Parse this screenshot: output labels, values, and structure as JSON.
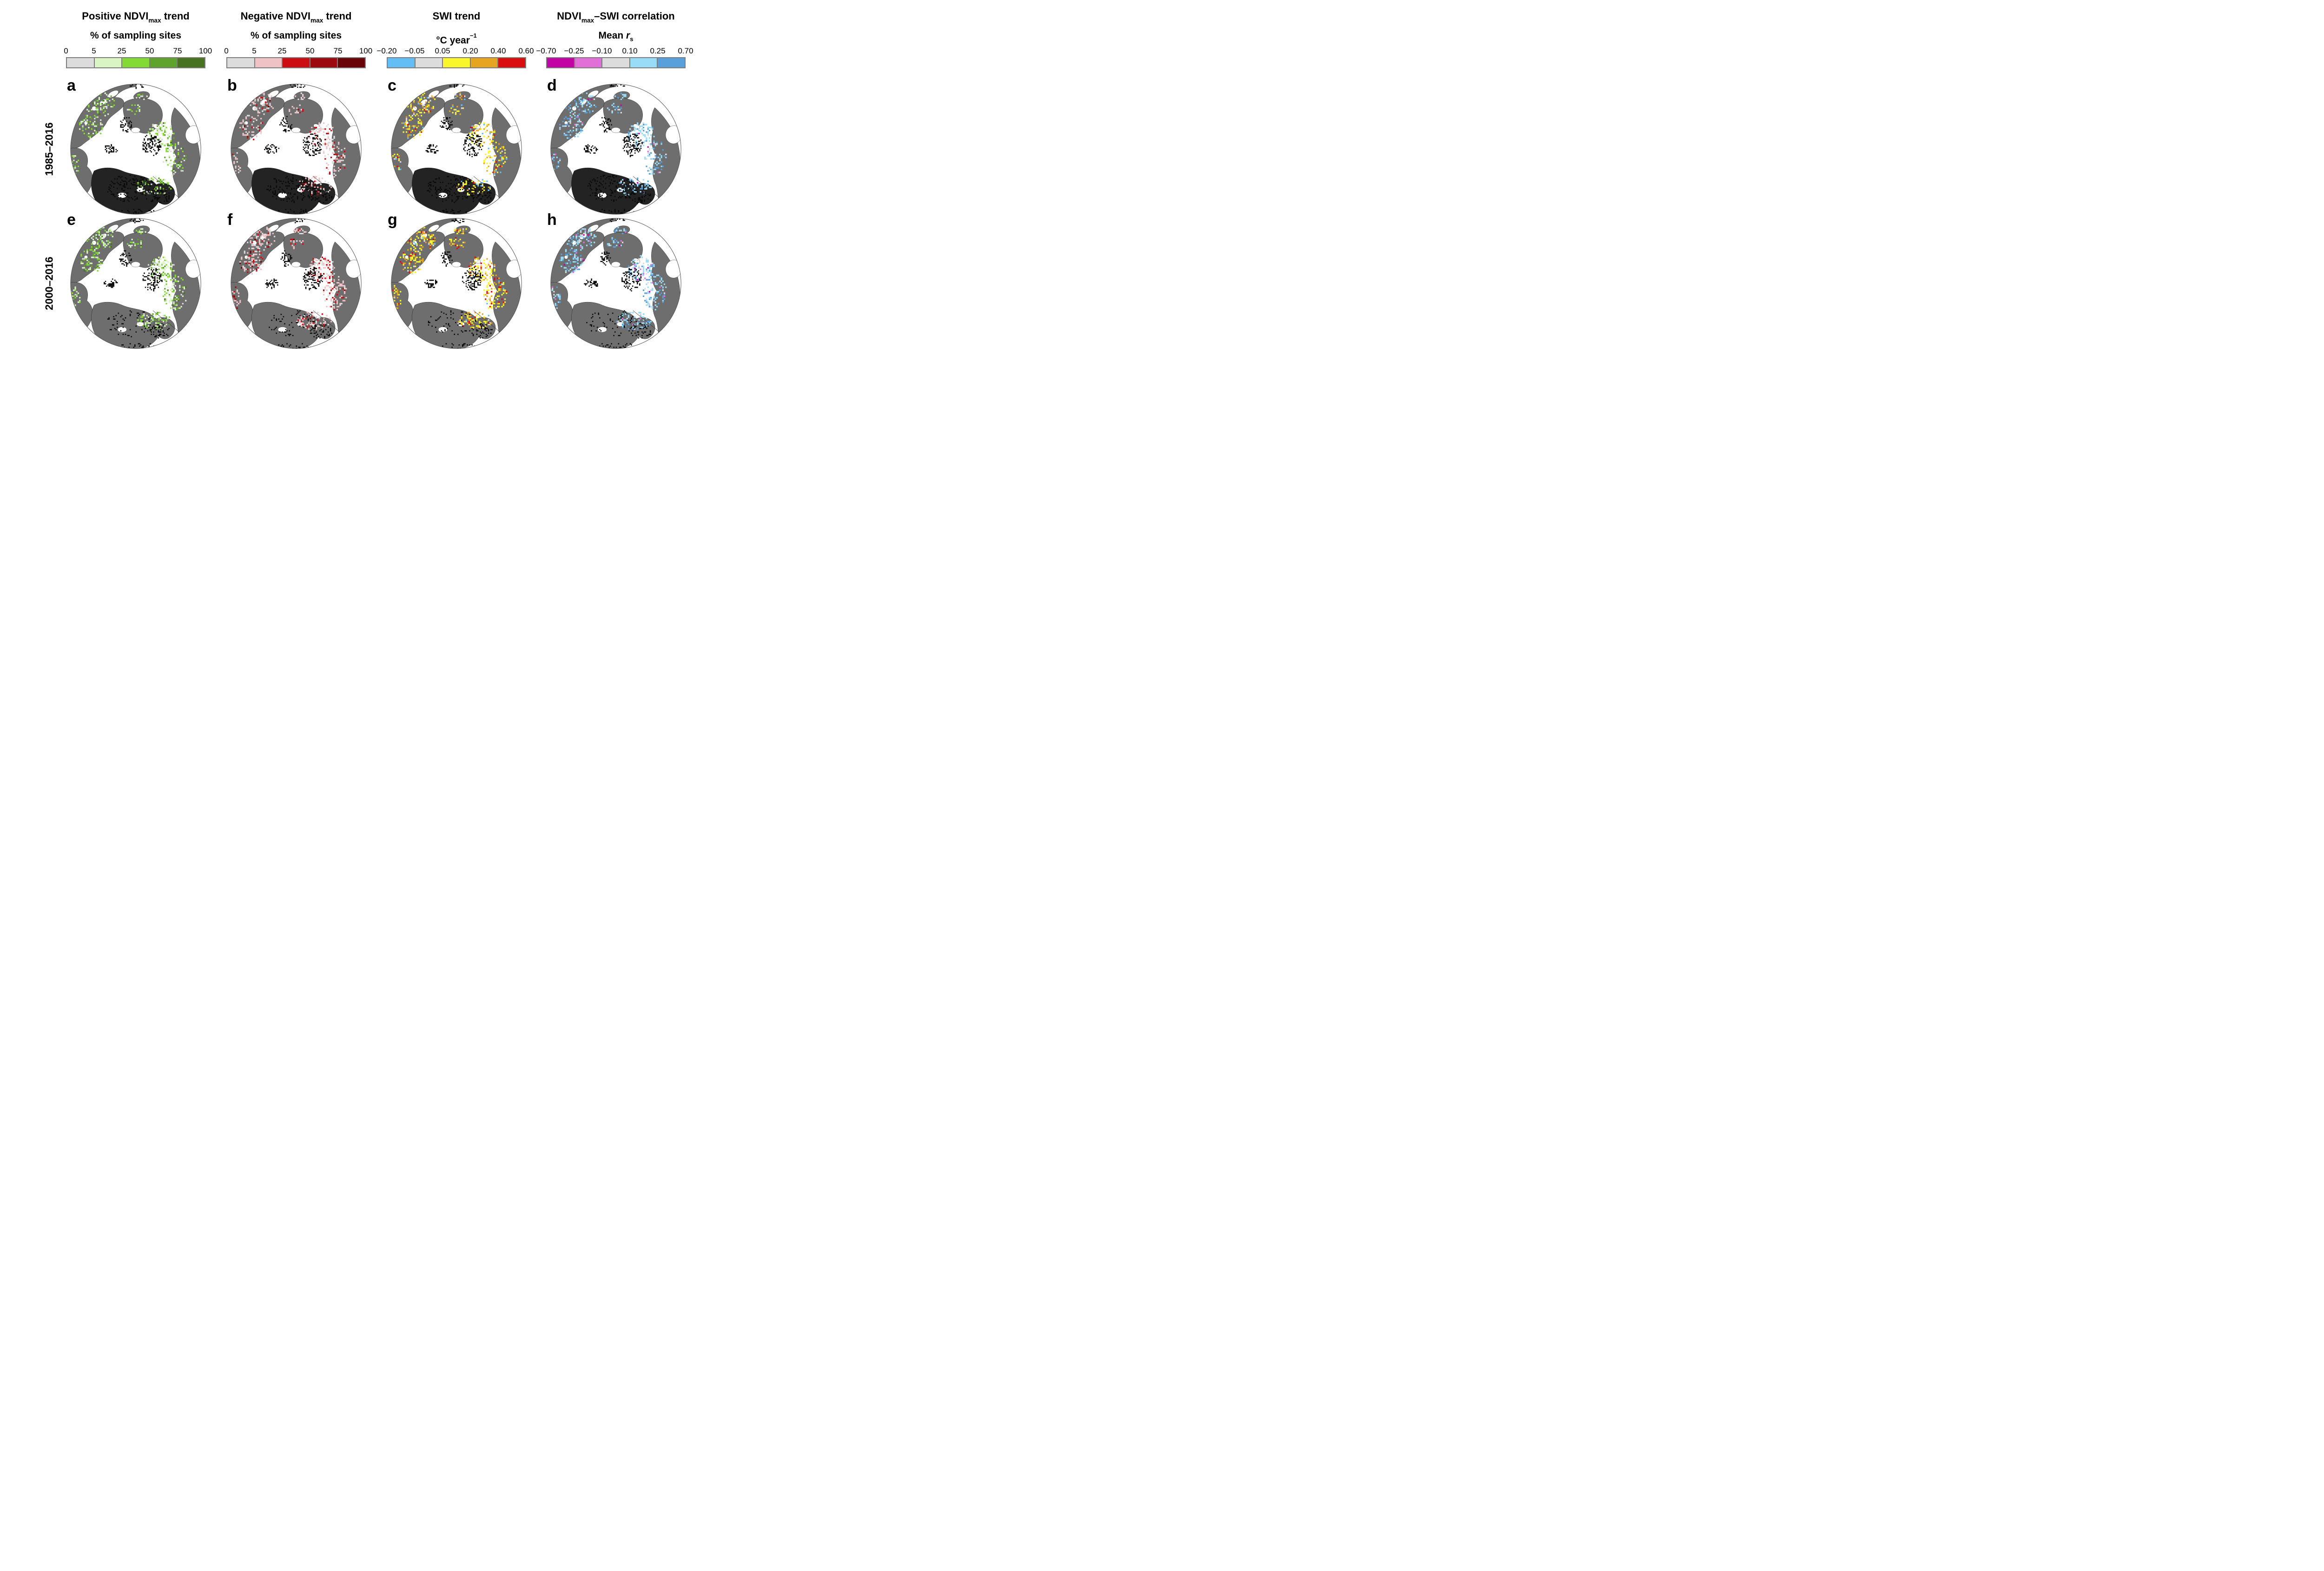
{
  "figure": {
    "kind": "circumpolar map figure",
    "background": "#ffffff"
  },
  "rows": [
    {
      "label": "1985–2016"
    },
    {
      "label": "2000–2016"
    }
  ],
  "legends": [
    {
      "title": [
        {
          "t": "Positive NDVI"
        },
        {
          "t": "max",
          "s": "sub"
        },
        {
          "t": " trend"
        }
      ],
      "unit": [
        {
          "t": "% of sampling sites"
        }
      ],
      "ticks": [
        "0",
        "5",
        "25",
        "50",
        "75",
        "100"
      ],
      "colors": [
        "#dcdcdc",
        "#d9f5c3",
        "#83da35",
        "#5fa32c",
        "#477220"
      ]
    },
    {
      "title": [
        {
          "t": "Negative NDVI"
        },
        {
          "t": "max",
          "s": "sub"
        },
        {
          "t": " trend"
        }
      ],
      "unit": [
        {
          "t": "% of sampling sites"
        }
      ],
      "ticks": [
        "0",
        "5",
        "25",
        "50",
        "75",
        "100"
      ],
      "colors": [
        "#dcdcdc",
        "#efc3c6",
        "#cc0d12",
        "#9c0a10",
        "#690409"
      ]
    },
    {
      "title": [
        {
          "t": "SWI trend"
        }
      ],
      "unit": [
        {
          "t": "°C year"
        },
        {
          "t": "−1",
          "s": "sup"
        }
      ],
      "ticks": [
        "−0.20",
        "−0.05",
        "0.05",
        "0.20",
        "0.40",
        "0.60"
      ],
      "colors": [
        "#62bef4",
        "#dcdcdc",
        "#f9f72c",
        "#e7a421",
        "#da0e0e"
      ]
    },
    {
      "title": [
        {
          "t": "NDVI"
        },
        {
          "t": "max",
          "s": "sub"
        },
        {
          "t": "–SWI correlation"
        }
      ],
      "unit": [
        {
          "t": "Mean "
        },
        {
          "t": "r",
          "s": "i"
        },
        {
          "t": "s",
          "s": "sub"
        }
      ],
      "ticks": [
        "−0.70",
        "−0.25",
        "−0.10",
        "0.10",
        "0.25",
        "0.70"
      ],
      "colors": [
        "#c303a3",
        "#e26ed8",
        "#dcdcdc",
        "#99dcf7",
        "#57a0dc"
      ]
    }
  ],
  "map_colors": {
    "land": "#6e6e6e",
    "interior_dark": "#232323",
    "speckle": "#0a0a0a",
    "circle_stroke": "#505050",
    "ocean": "#ffffff"
  },
  "panels": [
    {
      "letter": "a",
      "row": 0,
      "legend": 0,
      "seed": 11,
      "mix": [
        0.16,
        0.3,
        0.36,
        0.12,
        0.06
      ]
    },
    {
      "letter": "b",
      "row": 0,
      "legend": 1,
      "seed": 22,
      "mix": [
        0.34,
        0.46,
        0.13,
        0.05,
        0.02
      ]
    },
    {
      "letter": "c",
      "row": 0,
      "legend": 2,
      "seed": 33,
      "mix": [
        0.08,
        0.1,
        0.46,
        0.3,
        0.06
      ]
    },
    {
      "letter": "d",
      "row": 0,
      "legend": 3,
      "seed": 44,
      "mix": [
        0.02,
        0.03,
        0.13,
        0.5,
        0.32
      ]
    },
    {
      "letter": "e",
      "row": 1,
      "legend": 0,
      "seed": 55,
      "mix": [
        0.12,
        0.36,
        0.36,
        0.12,
        0.04
      ]
    },
    {
      "letter": "f",
      "row": 1,
      "legend": 1,
      "seed": 66,
      "mix": [
        0.26,
        0.5,
        0.17,
        0.05,
        0.02
      ]
    },
    {
      "letter": "g",
      "row": 1,
      "legend": 2,
      "seed": 77,
      "mix": [
        0.04,
        0.1,
        0.44,
        0.3,
        0.12
      ]
    },
    {
      "letter": "h",
      "row": 1,
      "legend": 3,
      "seed": 88,
      "mix": [
        0.02,
        0.06,
        0.14,
        0.48,
        0.3
      ]
    }
  ]
}
